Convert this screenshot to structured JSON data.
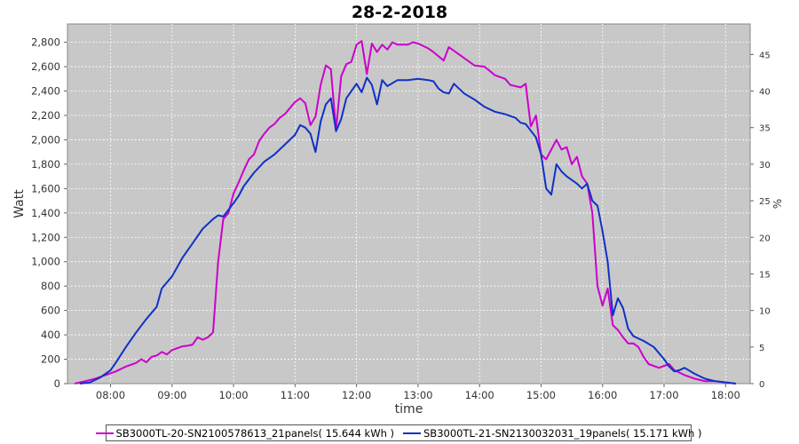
{
  "chart_data": {
    "type": "line",
    "title": "28-2-2018",
    "xlabel": "time",
    "ylabel": "Watt",
    "y2label": "%",
    "x_ticks": [
      "08:00",
      "09:00",
      "10:00",
      "11:00",
      "12:00",
      "13:00",
      "14:00",
      "15:00",
      "16:00",
      "17:00",
      "18:00"
    ],
    "y_ticks": [
      "0",
      "200",
      "400",
      "600",
      "800",
      "1,000",
      "1,200",
      "1,400",
      "1,600",
      "1,800",
      "2,000",
      "2,200",
      "2,400",
      "2,600",
      "2,800"
    ],
    "y2_ticks": [
      "0",
      "5",
      "10",
      "15",
      "20",
      "25",
      "30",
      "35",
      "40",
      "45"
    ],
    "xlim_hours": [
      7.3,
      18.4
    ],
    "ylim": [
      0,
      2950
    ],
    "y2lim": [
      0,
      49.17
    ],
    "grid": true,
    "legend_position": "bottom",
    "background": "#c8c8c8",
    "series": [
      {
        "name": "SB3000TL-20-SN2100578613_21panels( 15.644 kWh )",
        "color": "#cc00cc",
        "points": [
          [
            "07:25",
            0
          ],
          [
            "07:35",
            20
          ],
          [
            "07:45",
            40
          ],
          [
            "07:55",
            70
          ],
          [
            "08:05",
            100
          ],
          [
            "08:15",
            140
          ],
          [
            "08:25",
            170
          ],
          [
            "08:30",
            200
          ],
          [
            "08:35",
            175
          ],
          [
            "08:40",
            220
          ],
          [
            "08:45",
            230
          ],
          [
            "08:50",
            260
          ],
          [
            "08:55",
            240
          ],
          [
            "09:00",
            275
          ],
          [
            "09:05",
            290
          ],
          [
            "09:10",
            305
          ],
          [
            "09:15",
            310
          ],
          [
            "09:20",
            320
          ],
          [
            "09:25",
            380
          ],
          [
            "09:30",
            360
          ],
          [
            "09:35",
            380
          ],
          [
            "09:40",
            420
          ],
          [
            "09:45",
            1000
          ],
          [
            "09:50",
            1350
          ],
          [
            "09:55",
            1400
          ],
          [
            "10:00",
            1560
          ],
          [
            "10:05",
            1650
          ],
          [
            "10:10",
            1750
          ],
          [
            "10:15",
            1840
          ],
          [
            "10:20",
            1880
          ],
          [
            "10:25",
            1990
          ],
          [
            "10:30",
            2050
          ],
          [
            "10:35",
            2100
          ],
          [
            "10:40",
            2130
          ],
          [
            "10:45",
            2180
          ],
          [
            "10:50",
            2210
          ],
          [
            "10:55",
            2260
          ],
          [
            "11:00",
            2310
          ],
          [
            "11:05",
            2340
          ],
          [
            "11:10",
            2300
          ],
          [
            "11:15",
            2120
          ],
          [
            "11:20",
            2190
          ],
          [
            "11:25",
            2450
          ],
          [
            "11:30",
            2610
          ],
          [
            "11:35",
            2580
          ],
          [
            "11:40",
            2080
          ],
          [
            "11:45",
            2520
          ],
          [
            "11:50",
            2620
          ],
          [
            "11:55",
            2640
          ],
          [
            "12:00",
            2780
          ],
          [
            "12:05",
            2810
          ],
          [
            "12:10",
            2540
          ],
          [
            "12:15",
            2790
          ],
          [
            "12:20",
            2720
          ],
          [
            "12:25",
            2780
          ],
          [
            "12:30",
            2740
          ],
          [
            "12:35",
            2800
          ],
          [
            "12:40",
            2780
          ],
          [
            "12:50",
            2780
          ],
          [
            "12:55",
            2800
          ],
          [
            "13:00",
            2790
          ],
          [
            "13:10",
            2750
          ],
          [
            "13:15",
            2720
          ],
          [
            "13:25",
            2650
          ],
          [
            "13:30",
            2760
          ],
          [
            "13:35",
            2730
          ],
          [
            "13:45",
            2670
          ],
          [
            "13:55",
            2610
          ],
          [
            "14:05",
            2600
          ],
          [
            "14:15",
            2530
          ],
          [
            "14:25",
            2500
          ],
          [
            "14:30",
            2450
          ],
          [
            "14:40",
            2430
          ],
          [
            "14:45",
            2460
          ],
          [
            "14:50",
            2110
          ],
          [
            "14:55",
            2200
          ],
          [
            "15:00",
            1880
          ],
          [
            "15:05",
            1840
          ],
          [
            "15:10",
            1920
          ],
          [
            "15:15",
            2000
          ],
          [
            "15:20",
            1920
          ],
          [
            "15:25",
            1940
          ],
          [
            "15:30",
            1800
          ],
          [
            "15:35",
            1860
          ],
          [
            "15:40",
            1700
          ],
          [
            "15:45",
            1640
          ],
          [
            "15:50",
            1400
          ],
          [
            "15:55",
            800
          ],
          [
            "16:00",
            640
          ],
          [
            "16:05",
            780
          ],
          [
            "16:10",
            480
          ],
          [
            "16:15",
            440
          ],
          [
            "16:20",
            380
          ],
          [
            "16:25",
            330
          ],
          [
            "16:30",
            330
          ],
          [
            "16:35",
            300
          ],
          [
            "16:40",
            220
          ],
          [
            "16:45",
            160
          ],
          [
            "16:55",
            130
          ],
          [
            "17:05",
            160
          ],
          [
            "17:10",
            110
          ],
          [
            "17:20",
            70
          ],
          [
            "17:30",
            40
          ],
          [
            "17:40",
            20
          ],
          [
            "17:50",
            20
          ],
          [
            "18:00",
            10
          ],
          [
            "18:10",
            0
          ]
        ]
      },
      {
        "name": "SB3000TL-21-SN2130032031_19panels( 15.171 kWh )",
        "color": "#1030c8",
        "points": [
          [
            "07:30",
            0
          ],
          [
            "07:40",
            10
          ],
          [
            "07:50",
            50
          ],
          [
            "08:00",
            110
          ],
          [
            "08:05",
            170
          ],
          [
            "08:15",
            300
          ],
          [
            "08:25",
            420
          ],
          [
            "08:35",
            530
          ],
          [
            "08:45",
            630
          ],
          [
            "08:50",
            780
          ],
          [
            "09:00",
            880
          ],
          [
            "09:10",
            1030
          ],
          [
            "09:20",
            1150
          ],
          [
            "09:30",
            1270
          ],
          [
            "09:40",
            1350
          ],
          [
            "09:45",
            1380
          ],
          [
            "09:50",
            1370
          ],
          [
            "10:00",
            1480
          ],
          [
            "10:05",
            1540
          ],
          [
            "10:10",
            1620
          ],
          [
            "10:20",
            1730
          ],
          [
            "10:30",
            1820
          ],
          [
            "10:40",
            1880
          ],
          [
            "10:50",
            1960
          ],
          [
            "11:00",
            2040
          ],
          [
            "11:05",
            2120
          ],
          [
            "11:10",
            2100
          ],
          [
            "11:15",
            2050
          ],
          [
            "11:20",
            1900
          ],
          [
            "11:25",
            2150
          ],
          [
            "11:30",
            2290
          ],
          [
            "11:35",
            2340
          ],
          [
            "11:40",
            2070
          ],
          [
            "11:45",
            2170
          ],
          [
            "11:50",
            2340
          ],
          [
            "12:00",
            2460
          ],
          [
            "12:05",
            2390
          ],
          [
            "12:10",
            2510
          ],
          [
            "12:15",
            2450
          ],
          [
            "12:20",
            2290
          ],
          [
            "12:25",
            2490
          ],
          [
            "12:30",
            2440
          ],
          [
            "12:40",
            2490
          ],
          [
            "12:50",
            2490
          ],
          [
            "13:00",
            2500
          ],
          [
            "13:10",
            2490
          ],
          [
            "13:15",
            2480
          ],
          [
            "13:20",
            2420
          ],
          [
            "13:25",
            2390
          ],
          [
            "13:30",
            2380
          ],
          [
            "13:35",
            2460
          ],
          [
            "13:45",
            2380
          ],
          [
            "13:55",
            2330
          ],
          [
            "14:05",
            2270
          ],
          [
            "14:15",
            2230
          ],
          [
            "14:25",
            2210
          ],
          [
            "14:35",
            2180
          ],
          [
            "14:40",
            2140
          ],
          [
            "14:45",
            2130
          ],
          [
            "14:55",
            2020
          ],
          [
            "15:00",
            1880
          ],
          [
            "15:05",
            1600
          ],
          [
            "15:10",
            1550
          ],
          [
            "15:15",
            1800
          ],
          [
            "15:20",
            1740
          ],
          [
            "15:25",
            1700
          ],
          [
            "15:35",
            1640
          ],
          [
            "15:40",
            1600
          ],
          [
            "15:45",
            1640
          ],
          [
            "15:50",
            1500
          ],
          [
            "15:55",
            1460
          ],
          [
            "16:00",
            1250
          ],
          [
            "16:05",
            1000
          ],
          [
            "16:10",
            560
          ],
          [
            "16:15",
            700
          ],
          [
            "16:20",
            620
          ],
          [
            "16:25",
            450
          ],
          [
            "16:30",
            390
          ],
          [
            "16:40",
            350
          ],
          [
            "16:50",
            300
          ],
          [
            "17:00",
            200
          ],
          [
            "17:05",
            140
          ],
          [
            "17:10",
            100
          ],
          [
            "17:15",
            110
          ],
          [
            "17:20",
            130
          ],
          [
            "17:30",
            80
          ],
          [
            "17:40",
            40
          ],
          [
            "17:50",
            20
          ],
          [
            "18:00",
            10
          ],
          [
            "18:10",
            0
          ]
        ]
      }
    ]
  }
}
